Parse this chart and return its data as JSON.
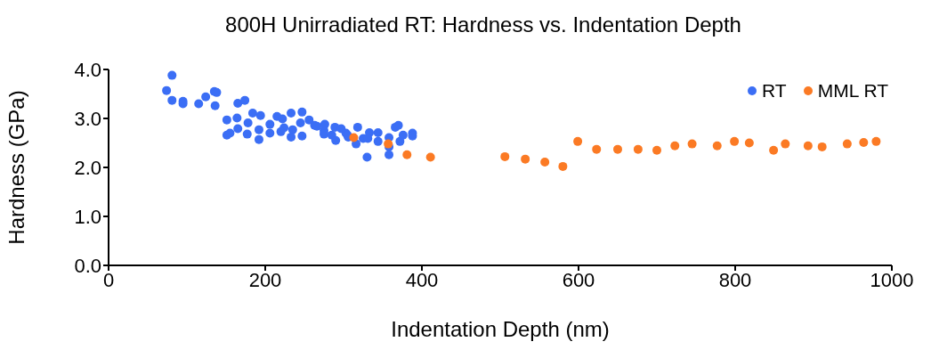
{
  "chart_data": {
    "type": "scatter",
    "title": "800H Unirradiated RT: Hardness vs. Indentation Depth",
    "xlabel": "Indentation Depth (nm)",
    "ylabel": "Hardness (GPa)",
    "xlim": [
      0,
      1000
    ],
    "xticks": [
      0,
      200,
      400,
      600,
      800,
      1000
    ],
    "ylim": [
      0,
      4
    ],
    "yticks": [
      {
        "value": 0,
        "label": "0.0"
      },
      {
        "value": 1,
        "label": "1.0"
      },
      {
        "value": 2,
        "label": "2.0"
      },
      {
        "value": 3,
        "label": "3.0"
      },
      {
        "value": 4,
        "label": "4.0"
      }
    ],
    "grid": false,
    "legend": "top right",
    "marker": "circle",
    "series": [
      {
        "name": "RT",
        "color": "#3b6ef5",
        "x": [
          81,
          74,
          81,
          95,
          95,
          115,
          124,
          135,
          138,
          136,
          151,
          165,
          174,
          164,
          165,
          151,
          155,
          178,
          177,
          184,
          194,
          192,
          192,
          206,
          206,
          215,
          222,
          224,
          220,
          233,
          235,
          233,
          247,
          245,
          247,
          256,
          263,
          266,
          276,
          275,
          275,
          289,
          297,
          285,
          290,
          303,
          306,
          318,
          305,
          316,
          325,
          333,
          331,
          344,
          344,
          330,
          358,
          358,
          358,
          366,
          370,
          372,
          376,
          388,
          388
        ],
        "values": [
          3.88,
          3.57,
          3.37,
          3.35,
          3.3,
          3.3,
          3.44,
          3.55,
          3.53,
          3.26,
          2.97,
          3.31,
          3.37,
          3.01,
          2.79,
          2.66,
          2.7,
          2.91,
          2.68,
          3.11,
          3.06,
          2.77,
          2.57,
          2.88,
          2.7,
          3.04,
          2.99,
          2.81,
          2.73,
          3.11,
          2.77,
          2.62,
          3.13,
          2.91,
          2.64,
          2.97,
          2.86,
          2.84,
          2.88,
          2.75,
          2.68,
          2.82,
          2.79,
          2.66,
          2.55,
          2.7,
          2.62,
          2.82,
          2.66,
          2.48,
          2.59,
          2.71,
          2.59,
          2.71,
          2.53,
          2.21,
          2.61,
          2.42,
          2.26,
          2.82,
          2.86,
          2.53,
          2.66,
          2.7,
          2.64
        ]
      },
      {
        "name": "MML RT",
        "color": "#fb7a24",
        "x": [
          313,
          357,
          381,
          411,
          506,
          532,
          557,
          580,
          599,
          623,
          650,
          676,
          700,
          723,
          745,
          777,
          799,
          818,
          849,
          864,
          893,
          911,
          943,
          964,
          980
        ],
        "values": [
          2.61,
          2.48,
          2.26,
          2.21,
          2.22,
          2.17,
          2.11,
          2.02,
          2.53,
          2.37,
          2.37,
          2.37,
          2.35,
          2.44,
          2.48,
          2.44,
          2.53,
          2.5,
          2.35,
          2.48,
          2.44,
          2.42,
          2.48,
          2.51,
          2.53
        ]
      }
    ]
  }
}
